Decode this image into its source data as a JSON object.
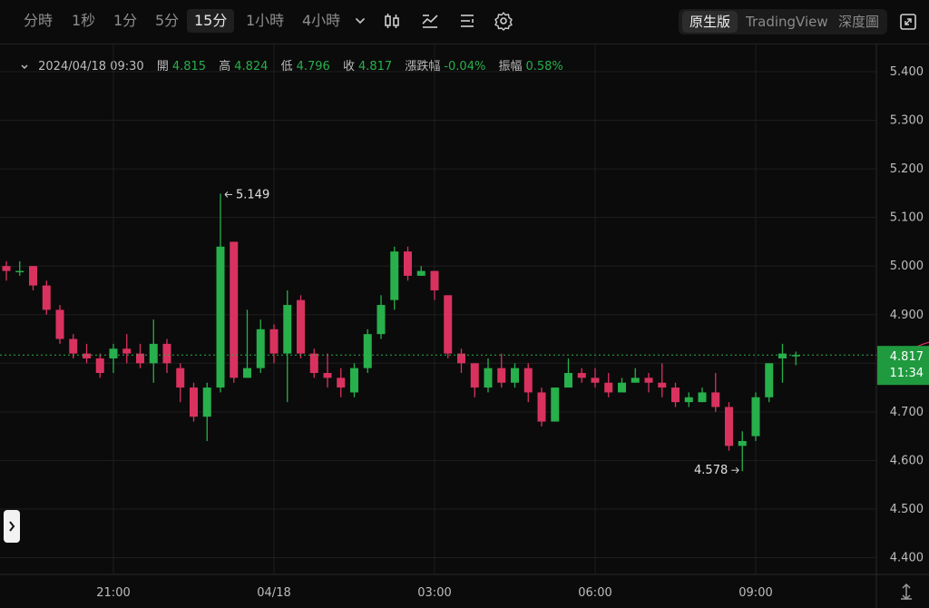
{
  "timeframes": [
    {
      "label": "分時",
      "active": false
    },
    {
      "label": "1秒",
      "active": false
    },
    {
      "label": "1分",
      "active": false
    },
    {
      "label": "5分",
      "active": false
    },
    {
      "label": "15分",
      "active": true
    },
    {
      "label": "1小時",
      "active": false
    },
    {
      "label": "4小時",
      "active": false
    }
  ],
  "toolbar_icons": [
    "chevron-down-icon",
    "candlestick-type-icon",
    "indicator-icon",
    "list-settings-icon",
    "gear-icon"
  ],
  "views": [
    {
      "label": "原生版",
      "active": true
    },
    {
      "label": "TradingView",
      "active": false
    },
    {
      "label": "深度圖",
      "active": false
    }
  ],
  "fullscreen_icon": "fullscreen-icon",
  "ohlc": {
    "datetime": "2024/04/18 09:30",
    "open_label": "開",
    "open": "4.815",
    "high_label": "高",
    "high": "4.824",
    "low_label": "低",
    "low": "4.796",
    "close_label": "收",
    "close": "4.817",
    "change_label": "漲跌幅",
    "change": "-0.04%",
    "amplitude_label": "振幅",
    "amplitude": "0.58%"
  },
  "colors": {
    "up": "#27b04b",
    "down": "#d9325f",
    "background": "#0b0b0b",
    "grid": "#1e1e1e",
    "last_price_line": "#27b04b"
  },
  "chart_data": {
    "type": "candlestick",
    "interval": "15分",
    "ylim": [
      4.36,
      5.45
    ],
    "y_ticks": [
      "5.400",
      "5.300",
      "5.200",
      "5.100",
      "5.000",
      "4.900",
      "4.800",
      "4.700",
      "4.600",
      "4.500",
      "4.400"
    ],
    "x_ticks": [
      "21:00",
      "04/18",
      "03:00",
      "06:00",
      "09:00"
    ],
    "high_annotation": "5.149",
    "low_annotation": "4.578",
    "last_price": "4.817",
    "countdown": "11:34",
    "candles": [
      [
        5.0,
        4.99,
        5.01,
        4.97
      ],
      [
        4.99,
        4.99,
        5.01,
        4.98
      ],
      [
        5.0,
        4.96,
        5.0,
        4.95
      ],
      [
        4.96,
        4.91,
        4.97,
        4.9
      ],
      [
        4.91,
        4.85,
        4.92,
        4.84
      ],
      [
        4.85,
        4.82,
        4.86,
        4.81
      ],
      [
        4.82,
        4.81,
        4.84,
        4.8
      ],
      [
        4.81,
        4.78,
        4.82,
        4.77
      ],
      [
        4.81,
        4.83,
        4.84,
        4.78
      ],
      [
        4.83,
        4.82,
        4.86,
        4.8
      ],
      [
        4.82,
        4.8,
        4.84,
        4.79
      ],
      [
        4.8,
        4.84,
        4.89,
        4.76
      ],
      [
        4.84,
        4.8,
        4.85,
        4.78
      ],
      [
        4.79,
        4.75,
        4.8,
        4.72
      ],
      [
        4.75,
        4.69,
        4.76,
        4.68
      ],
      [
        4.69,
        4.75,
        4.76,
        4.64
      ],
      [
        4.75,
        5.04,
        5.149,
        4.74
      ],
      [
        5.05,
        4.77,
        5.05,
        4.76
      ],
      [
        4.77,
        4.79,
        4.91,
        4.77
      ],
      [
        4.79,
        4.87,
        4.89,
        4.78
      ],
      [
        4.87,
        4.82,
        4.88,
        4.8
      ],
      [
        4.82,
        4.92,
        4.95,
        4.72
      ],
      [
        4.93,
        4.82,
        4.94,
        4.81
      ],
      [
        4.82,
        4.78,
        4.83,
        4.77
      ],
      [
        4.78,
        4.77,
        4.82,
        4.75
      ],
      [
        4.77,
        4.75,
        4.79,
        4.73
      ],
      [
        4.74,
        4.79,
        4.8,
        4.73
      ],
      [
        4.79,
        4.86,
        4.87,
        4.78
      ],
      [
        4.86,
        4.92,
        4.94,
        4.85
      ],
      [
        4.93,
        5.03,
        5.04,
        4.91
      ],
      [
        5.03,
        4.98,
        5.04,
        4.97
      ],
      [
        4.98,
        4.99,
        5.0,
        4.98
      ],
      [
        4.99,
        4.95,
        4.99,
        4.93
      ],
      [
        4.94,
        4.82,
        4.94,
        4.81
      ],
      [
        4.82,
        4.8,
        4.83,
        4.78
      ],
      [
        4.8,
        4.75,
        4.8,
        4.73
      ],
      [
        4.75,
        4.79,
        4.81,
        4.74
      ],
      [
        4.79,
        4.76,
        4.82,
        4.75
      ],
      [
        4.76,
        4.79,
        4.8,
        4.75
      ],
      [
        4.79,
        4.74,
        4.8,
        4.72
      ],
      [
        4.74,
        4.68,
        4.75,
        4.67
      ],
      [
        4.68,
        4.75,
        4.75,
        4.68
      ],
      [
        4.75,
        4.78,
        4.81,
        4.75
      ],
      [
        4.78,
        4.77,
        4.79,
        4.76
      ],
      [
        4.77,
        4.76,
        4.79,
        4.75
      ],
      [
        4.76,
        4.74,
        4.78,
        4.73
      ],
      [
        4.74,
        4.76,
        4.77,
        4.74
      ],
      [
        4.76,
        4.77,
        4.79,
        4.76
      ],
      [
        4.77,
        4.76,
        4.78,
        4.74
      ],
      [
        4.76,
        4.75,
        4.8,
        4.73
      ],
      [
        4.75,
        4.72,
        4.76,
        4.71
      ],
      [
        4.72,
        4.73,
        4.74,
        4.71
      ],
      [
        4.72,
        4.74,
        4.75,
        4.72
      ],
      [
        4.74,
        4.71,
        4.78,
        4.7
      ],
      [
        4.71,
        4.63,
        4.72,
        4.62
      ],
      [
        4.63,
        4.64,
        4.66,
        4.578
      ],
      [
        4.65,
        4.73,
        4.74,
        4.64
      ],
      [
        4.73,
        4.8,
        4.8,
        4.72
      ],
      [
        4.81,
        4.82,
        4.84,
        4.76
      ],
      [
        4.815,
        4.817,
        4.824,
        4.796
      ]
    ]
  }
}
